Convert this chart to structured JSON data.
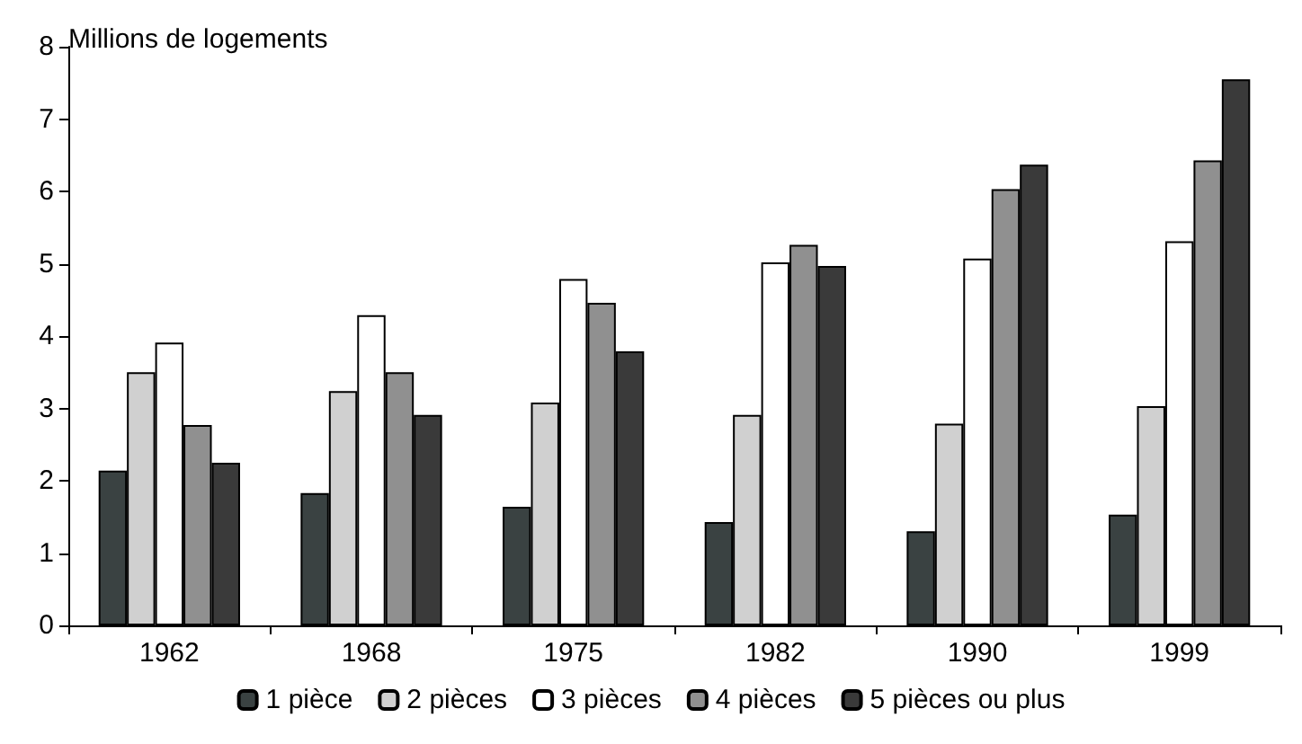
{
  "chart_data": {
    "type": "bar",
    "ylabel": "Millions de logements",
    "categories": [
      "1962",
      "1968",
      "1975",
      "1982",
      "1990",
      "1999"
    ],
    "series": [
      {
        "name": "1 pièce",
        "color": "#3a4242",
        "values": [
          2.14,
          1.83,
          1.64,
          1.43,
          1.3,
          1.53
        ]
      },
      {
        "name": "2 pièces",
        "color": "#d0d0d0",
        "values": [
          3.5,
          3.24,
          3.08,
          2.91,
          2.79,
          3.03
        ]
      },
      {
        "name": "3 pièces",
        "color": "#ffffff",
        "values": [
          3.91,
          4.29,
          4.79,
          5.02,
          5.07,
          5.31
        ]
      },
      {
        "name": "4 pièces",
        "color": "#909090",
        "values": [
          2.77,
          3.5,
          4.46,
          5.26,
          6.03,
          6.43
        ]
      },
      {
        "name": "5 pièces ou plus",
        "color": "#3a3a3a",
        "values": [
          2.25,
          2.91,
          3.79,
          4.97,
          6.37,
          7.55
        ]
      }
    ],
    "ylim": [
      0,
      8
    ],
    "yticks": [
      0,
      1,
      2,
      3,
      4,
      5,
      6,
      7,
      8
    ],
    "grid": false,
    "legend": "bottom"
  }
}
